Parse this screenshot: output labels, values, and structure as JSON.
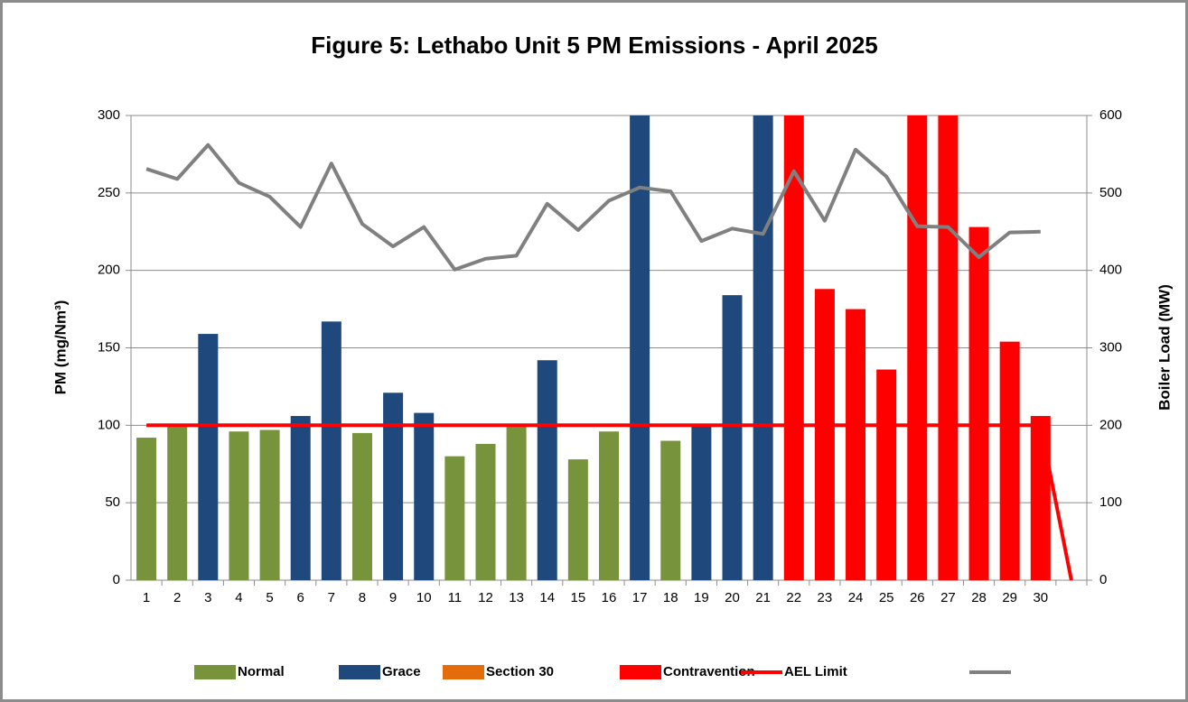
{
  "chart_data": {
    "type": "bar",
    "title": "Figure 5: Lethabo Unit 5 PM Emissions - April 2025",
    "ylabel": "PM (mg/Nm³)",
    "y2label": "Boiler Load (MW)",
    "categories": [
      "1",
      "2",
      "3",
      "4",
      "5",
      "6",
      "7",
      "8",
      "9",
      "10",
      "11",
      "12",
      "13",
      "14",
      "15",
      "16",
      "17",
      "18",
      "19",
      "20",
      "21",
      "22",
      "23",
      "24",
      "25",
      "26",
      "27",
      "28",
      "29",
      "30",
      null
    ],
    "ylim": [
      0,
      300
    ],
    "yticks": [
      0,
      50,
      100,
      150,
      200,
      250,
      300
    ],
    "y2lim": [
      0,
      600
    ],
    "y2ticks": [
      0,
      100,
      200,
      300,
      400,
      500,
      600
    ],
    "grid": true,
    "series": [
      {
        "name": "Normal",
        "type": "bar",
        "color": "#77933c",
        "values": [
          92,
          100,
          null,
          96,
          97,
          null,
          null,
          95,
          null,
          null,
          80,
          88,
          100,
          null,
          78,
          96,
          null,
          90,
          null,
          null,
          null,
          null,
          null,
          null,
          null,
          null,
          null,
          null,
          null,
          null,
          null
        ]
      },
      {
        "name": "Grace",
        "type": "bar",
        "color": "#1f497d",
        "values": [
          null,
          null,
          159,
          null,
          null,
          106,
          167,
          null,
          121,
          108,
          null,
          null,
          null,
          142,
          null,
          null,
          300,
          null,
          101,
          184,
          300,
          null,
          null,
          null,
          null,
          null,
          null,
          null,
          null,
          null,
          null
        ]
      },
      {
        "name": "Section 30",
        "type": "bar",
        "color": "#e46c0a",
        "values": [
          null,
          null,
          null,
          null,
          null,
          null,
          null,
          null,
          null,
          null,
          null,
          null,
          null,
          null,
          null,
          null,
          null,
          null,
          null,
          null,
          null,
          null,
          null,
          null,
          null,
          null,
          null,
          null,
          null,
          null,
          null
        ]
      },
      {
        "name": "Contravention",
        "type": "bar",
        "color": "#ff0000",
        "values": [
          null,
          null,
          null,
          null,
          null,
          null,
          null,
          null,
          null,
          null,
          null,
          null,
          null,
          null,
          null,
          null,
          null,
          null,
          null,
          null,
          null,
          300,
          188,
          175,
          136,
          300,
          300,
          228,
          154,
          106,
          null
        ]
      },
      {
        "name": "AEL Limit",
        "type": "line",
        "color": "#ff0000",
        "values": [
          100,
          100,
          100,
          100,
          100,
          100,
          100,
          100,
          100,
          100,
          100,
          100,
          100,
          100,
          100,
          100,
          100,
          100,
          100,
          100,
          100,
          100,
          100,
          100,
          100,
          100,
          100,
          100,
          100,
          100,
          0
        ]
      },
      {
        "type": "line",
        "axis": "y2",
        "color": "#808080",
        "values": [
          531,
          518,
          562,
          513,
          495,
          456,
          538,
          460,
          431,
          456,
          401,
          415,
          419,
          486,
          452,
          490,
          507,
          502,
          438,
          454,
          447,
          528,
          464,
          556,
          521,
          457,
          456,
          417,
          449,
          450,
          null
        ]
      }
    ]
  }
}
